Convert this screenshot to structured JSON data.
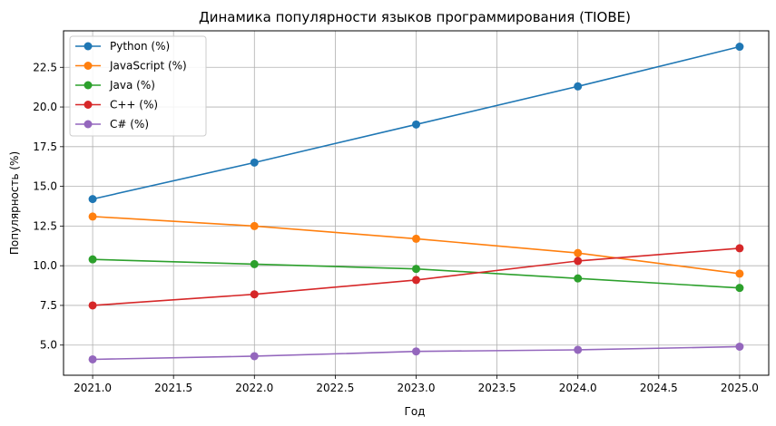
{
  "chart_data": {
    "type": "line",
    "title": "Динамика популярности языков программирования (TIOBE)",
    "xlabel": "Год",
    "ylabel": "Популярность (%)",
    "x": [
      2021,
      2022,
      2023,
      2024,
      2025
    ],
    "xlim": [
      2020.82,
      2025.18
    ],
    "ylim": [
      3.1,
      24.8
    ],
    "xticks": [
      2021.0,
      2021.5,
      2022.0,
      2022.5,
      2023.0,
      2023.5,
      2024.0,
      2024.5,
      2025.0
    ],
    "xtick_labels": [
      "2021.0",
      "2021.5",
      "2022.0",
      "2022.5",
      "2023.0",
      "2023.5",
      "2024.0",
      "2024.5",
      "2025.0"
    ],
    "yticks": [
      5.0,
      7.5,
      10.0,
      12.5,
      15.0,
      17.5,
      20.0,
      22.5
    ],
    "ytick_labels": [
      "5.0",
      "7.5",
      "10.0",
      "12.5",
      "15.0",
      "17.5",
      "20.0",
      "22.5"
    ],
    "grid": true,
    "legend_position": "top-left",
    "series": [
      {
        "name": "Python (%)",
        "color": "#1f77b4",
        "values": [
          14.2,
          16.5,
          18.9,
          21.3,
          23.8
        ]
      },
      {
        "name": "JavaScript (%)",
        "color": "#ff7f0e",
        "values": [
          13.1,
          12.5,
          11.7,
          10.8,
          9.5
        ]
      },
      {
        "name": "Java (%)",
        "color": "#2ca02c",
        "values": [
          10.4,
          10.1,
          9.8,
          9.2,
          8.6
        ]
      },
      {
        "name": "C++ (%)",
        "color": "#d62728",
        "values": [
          7.5,
          8.2,
          9.1,
          10.3,
          11.1
        ]
      },
      {
        "name": "C# (%)",
        "color": "#9467bd",
        "values": [
          4.1,
          4.3,
          4.6,
          4.7,
          4.9
        ]
      }
    ]
  }
}
